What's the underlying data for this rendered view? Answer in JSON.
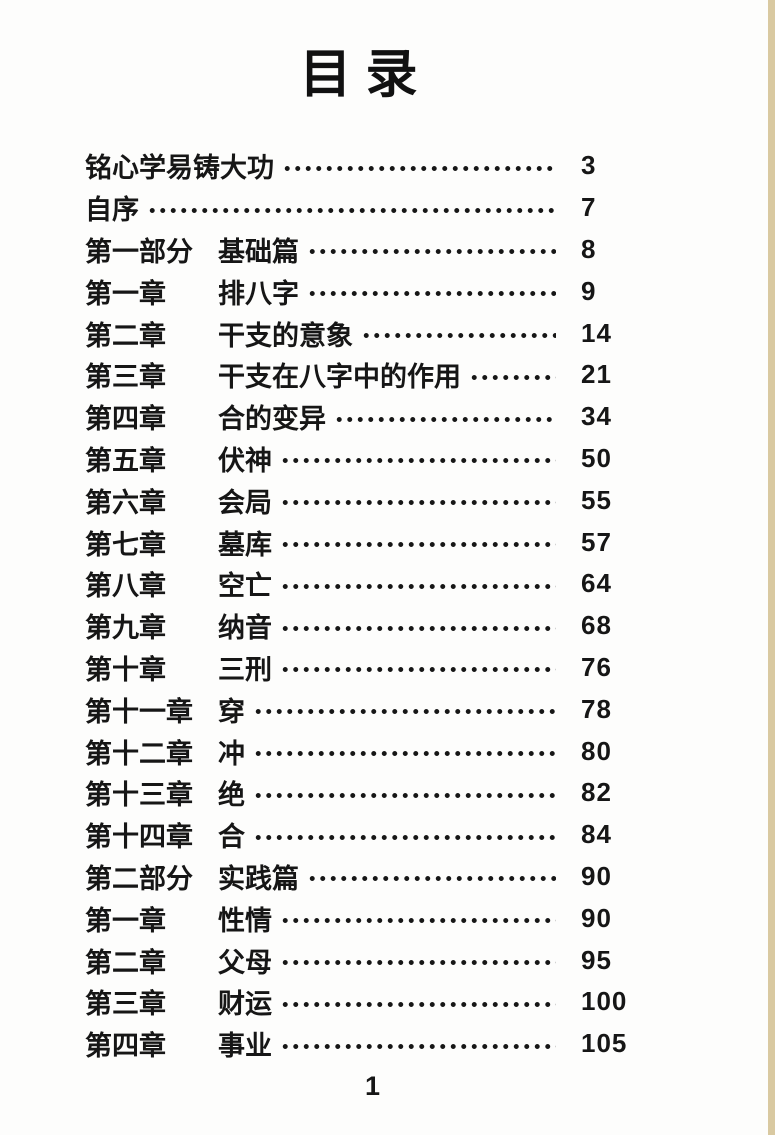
{
  "page": {
    "title": "目录",
    "footer_page_number": "1"
  },
  "toc": {
    "entries": [
      {
        "label": "铭心学易铸大功",
        "title": "",
        "page": "3"
      },
      {
        "label": "自序",
        "title": "",
        "page": "7"
      },
      {
        "label": "第一部分",
        "title": "基础篇",
        "page": "8"
      },
      {
        "label": "第一章",
        "title": "排八字",
        "page": "9"
      },
      {
        "label": "第二章",
        "title": "干支的意象",
        "page": "14"
      },
      {
        "label": "第三章",
        "title": "干支在八字中的作用",
        "page": "21"
      },
      {
        "label": "第四章",
        "title": "合的变异",
        "page": "34"
      },
      {
        "label": "第五章",
        "title": "伏神",
        "page": "50"
      },
      {
        "label": "第六章",
        "title": "会局",
        "page": "55"
      },
      {
        "label": "第七章",
        "title": "墓库",
        "page": "57"
      },
      {
        "label": "第八章",
        "title": "空亡",
        "page": "64"
      },
      {
        "label": "第九章",
        "title": "纳音",
        "page": "68"
      },
      {
        "label": "第十章",
        "title": "三刑",
        "page": "76"
      },
      {
        "label": "第十一章",
        "title": "穿",
        "page": "78"
      },
      {
        "label": "第十二章",
        "title": "冲",
        "page": "80"
      },
      {
        "label": "第十三章",
        "title": "绝",
        "page": "82"
      },
      {
        "label": "第十四章",
        "title": "合",
        "page": "84"
      },
      {
        "label": "第二部分",
        "title": "实践篇",
        "page": "90"
      },
      {
        "label": "第一章",
        "title": "性情",
        "page": "90"
      },
      {
        "label": "第二章",
        "title": "父母",
        "page": "95"
      },
      {
        "label": "第三章",
        "title": "财运",
        "page": "100"
      },
      {
        "label": "第四章",
        "title": "事业",
        "page": "105"
      }
    ]
  },
  "colors": {
    "text": "#161616",
    "background": "#fdfdfc",
    "edge_line": "#d9c9a1"
  }
}
